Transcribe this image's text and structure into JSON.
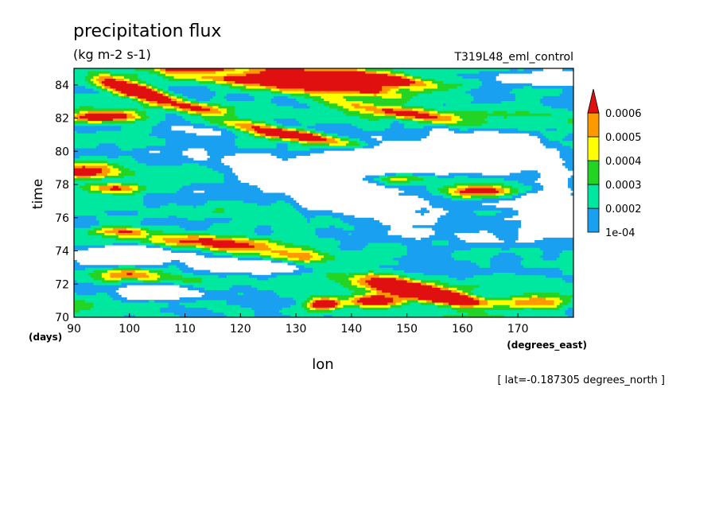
{
  "chart_data": {
    "type": "heatmap",
    "title": "precipitation flux",
    "units": "(kg m-2 s-1)",
    "run_label": "T319L48_eml_control",
    "xlabel": "lon",
    "x_unit_label": "(degrees_east)",
    "ylabel": "time",
    "y_unit_label": "(days)",
    "footer": "[ lat=-0.187305 degrees_north ]",
    "xlim": [
      90,
      180
    ],
    "ylim": [
      70,
      85
    ],
    "x_ticks": [
      90,
      100,
      110,
      120,
      130,
      140,
      150,
      160,
      170
    ],
    "y_ticks": [
      70,
      72,
      74,
      76,
      78,
      80,
      82,
      84
    ],
    "colorbar": {
      "labels": [
        "1e-04",
        "0.0002",
        "0.0003",
        "0.0004",
        "0.0005",
        "0.0006"
      ],
      "colors": [
        "#ffffff",
        "#1aa0f0",
        "#00e8a0",
        "#24d424",
        "#ffff00",
        "#ff9900",
        "#e01010"
      ],
      "extend": "max"
    },
    "features": [
      {
        "lon": 101,
        "t": 83.7,
        "dlon": 7,
        "dt": 0.45,
        "tilt": -0.08,
        "amp": 1.0
      },
      {
        "lon": 118,
        "t": 84.6,
        "dlon": 18,
        "dt": 0.55,
        "tilt": -0.05,
        "amp": 0.85
      },
      {
        "lon": 136,
        "t": 84.3,
        "dlon": 12,
        "dt": 0.5,
        "tilt": -0.06,
        "amp": 0.85
      },
      {
        "lon": 146,
        "t": 84.4,
        "dlon": 10,
        "dt": 0.35,
        "tilt": -0.05,
        "amp": 0.6
      },
      {
        "lon": 95,
        "t": 82.1,
        "dlon": 6,
        "dt": 0.35,
        "tilt": 0,
        "amp": 0.85
      },
      {
        "lon": 112,
        "t": 82.6,
        "dlon": 6,
        "dt": 0.35,
        "tilt": -0.05,
        "amp": 0.55
      },
      {
        "lon": 128,
        "t": 81.1,
        "dlon": 11,
        "dt": 0.35,
        "tilt": -0.05,
        "amp": 0.92
      },
      {
        "lon": 150,
        "t": 82.3,
        "dlon": 14,
        "dt": 0.35,
        "tilt": -0.05,
        "amp": 0.5
      },
      {
        "lon": 92,
        "t": 78.9,
        "dlon": 6,
        "dt": 0.5,
        "tilt": 0,
        "amp": 0.6
      },
      {
        "lon": 97,
        "t": 77.8,
        "dlon": 5,
        "dt": 0.3,
        "tilt": 0,
        "amp": 0.55
      },
      {
        "lon": 163,
        "t": 77.6,
        "dlon": 6,
        "dt": 0.35,
        "tilt": 0,
        "amp": 0.68
      },
      {
        "lon": 148,
        "t": 78.4,
        "dlon": 8,
        "dt": 0.35,
        "tilt": 0,
        "amp": 0.45
      },
      {
        "lon": 115,
        "t": 74.5,
        "dlon": 12,
        "dt": 0.45,
        "tilt": -0.03,
        "amp": 0.58
      },
      {
        "lon": 130,
        "t": 73.6,
        "dlon": 8,
        "dt": 0.4,
        "tilt": 0,
        "amp": 0.55
      },
      {
        "lon": 98,
        "t": 75.2,
        "dlon": 6,
        "dt": 0.3,
        "tilt": 0,
        "amp": 0.45
      },
      {
        "lon": 150,
        "t": 71.7,
        "dlon": 9,
        "dt": 0.55,
        "tilt": -0.07,
        "amp": 1.05
      },
      {
        "lon": 144,
        "t": 71.0,
        "dlon": 4,
        "dt": 0.35,
        "tilt": 0,
        "amp": 0.9
      },
      {
        "lon": 158,
        "t": 71.2,
        "dlon": 5,
        "dt": 0.35,
        "tilt": -0.05,
        "amp": 0.75
      },
      {
        "lon": 135,
        "t": 70.8,
        "dlon": 3,
        "dt": 0.35,
        "tilt": 0,
        "amp": 0.88
      },
      {
        "lon": 172,
        "t": 70.9,
        "dlon": 7,
        "dt": 0.4,
        "tilt": 0,
        "amp": 0.6
      },
      {
        "lon": 100,
        "t": 72.6,
        "dlon": 6,
        "dt": 0.35,
        "tilt": 0,
        "amp": 0.45
      }
    ],
    "dry_regions": [
      {
        "lon": 137,
        "t": 77.5,
        "dlon": 18,
        "dt": 1.2,
        "tilt": -0.1
      },
      {
        "lon": 160,
        "t": 79.8,
        "dlon": 14,
        "dt": 1.0,
        "tilt": 0
      },
      {
        "lon": 145,
        "t": 79.3,
        "dlon": 10,
        "dt": 0.9,
        "tilt": 0
      },
      {
        "lon": 122,
        "t": 73.1,
        "dlon": 8,
        "dt": 0.5,
        "tilt": 0
      },
      {
        "lon": 100,
        "t": 73.8,
        "dlon": 8,
        "dt": 0.5,
        "tilt": 0
      },
      {
        "lon": 176,
        "t": 76.5,
        "dlon": 6,
        "dt": 1.5,
        "tilt": 0
      },
      {
        "lon": 105,
        "t": 71.5,
        "dlon": 6,
        "dt": 0.4,
        "tilt": 0
      },
      {
        "lon": 175,
        "t": 84.4,
        "dlon": 8,
        "dt": 0.4,
        "tilt": 0
      },
      {
        "lon": 116,
        "t": 84.7,
        "dlon": 6,
        "dt": 0.25,
        "tilt": 0
      }
    ]
  }
}
